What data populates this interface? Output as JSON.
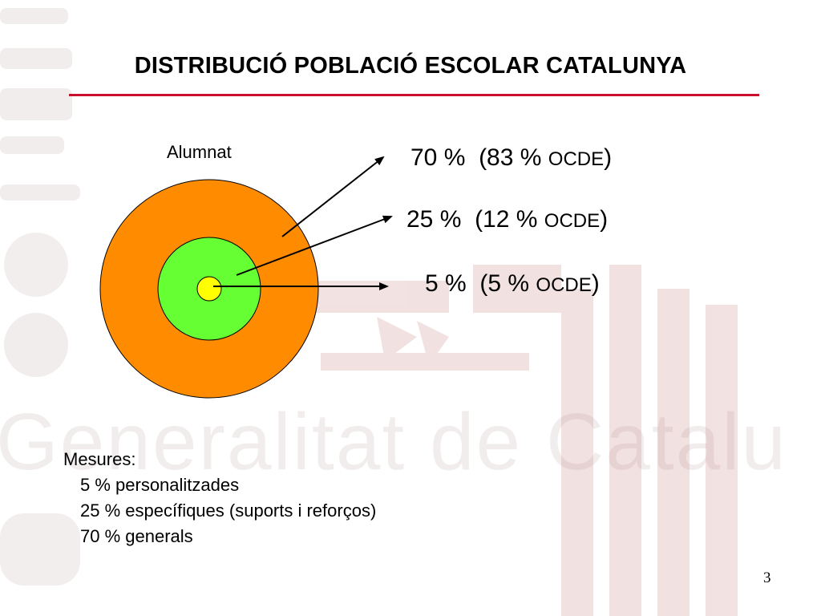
{
  "slide": {
    "title": "DISTRIBUCIÓ POBLACIÓ ESCOLAR CATALUNYA",
    "page_number": "3",
    "colors": {
      "title_rule": "#c8102e",
      "watermark": "#d9a7a7"
    }
  },
  "watermark": {
    "text": "Generalitat de Catalunya",
    "icon": "generalitat-logo"
  },
  "diagram": {
    "label": "Alumnat",
    "rings": [
      {
        "name": "outer",
        "value": "70 %",
        "compare": "(83 %",
        "source": "OCDE",
        "close": ")",
        "share_percent": 70,
        "color": "#ff8c00"
      },
      {
        "name": "middle",
        "value": "25 %",
        "compare": "(12 %",
        "source": "OCDE",
        "close": ")",
        "share_percent": 25,
        "color": "#66ff33"
      },
      {
        "name": "inner",
        "value": "5 %",
        "compare": "(5 %",
        "source": "OCDE",
        "close": ")",
        "share_percent": 5,
        "color": "#ffff00"
      }
    ]
  },
  "measures": {
    "heading": "Mesures:",
    "items": [
      "5 % personalitzades",
      "25 % específiques (suports i reforços)",
      "70 % generals"
    ]
  }
}
